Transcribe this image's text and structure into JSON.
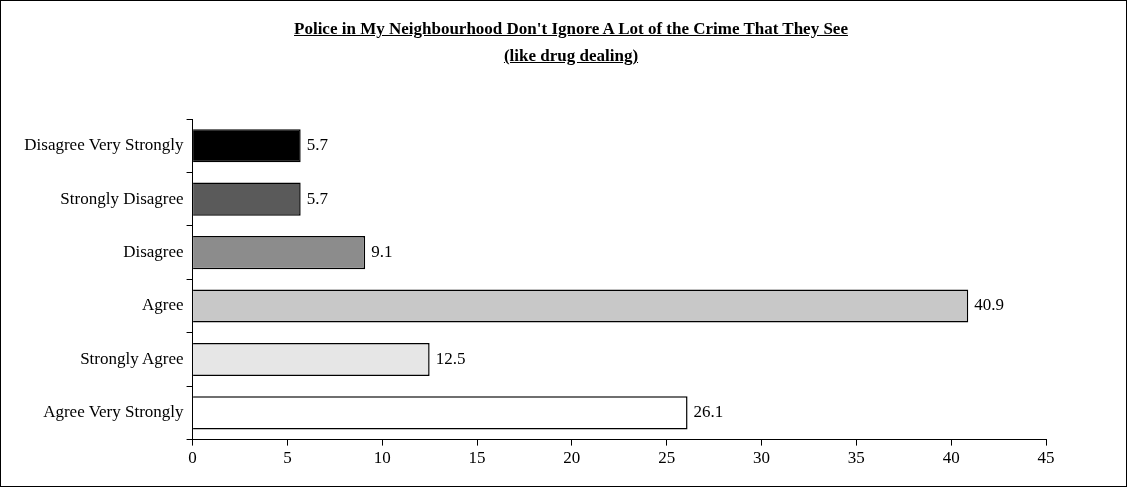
{
  "chart_data": {
    "type": "bar",
    "orientation": "horizontal",
    "title": "Police in My Neighbourhood Don't Ignore A Lot of the Crime That They See (like drug dealing)",
    "categories": [
      "Disagree Very Strongly",
      "Strongly Disagree",
      "Disagree",
      "Agree",
      "Strongly Agree",
      "Agree Very Strongly"
    ],
    "values": [
      5.7,
      5.7,
      9.1,
      40.9,
      12.5,
      26.1
    ],
    "colors": [
      "#000000",
      "#5a5a5a",
      "#8c8c8c",
      "#c8c8c8",
      "#e6e6e6",
      "#ffffff"
    ],
    "xlim": [
      0,
      45
    ],
    "xticks": [
      0,
      5,
      10,
      15,
      20,
      25,
      30,
      35,
      40,
      45
    ],
    "data_labels": true
  }
}
